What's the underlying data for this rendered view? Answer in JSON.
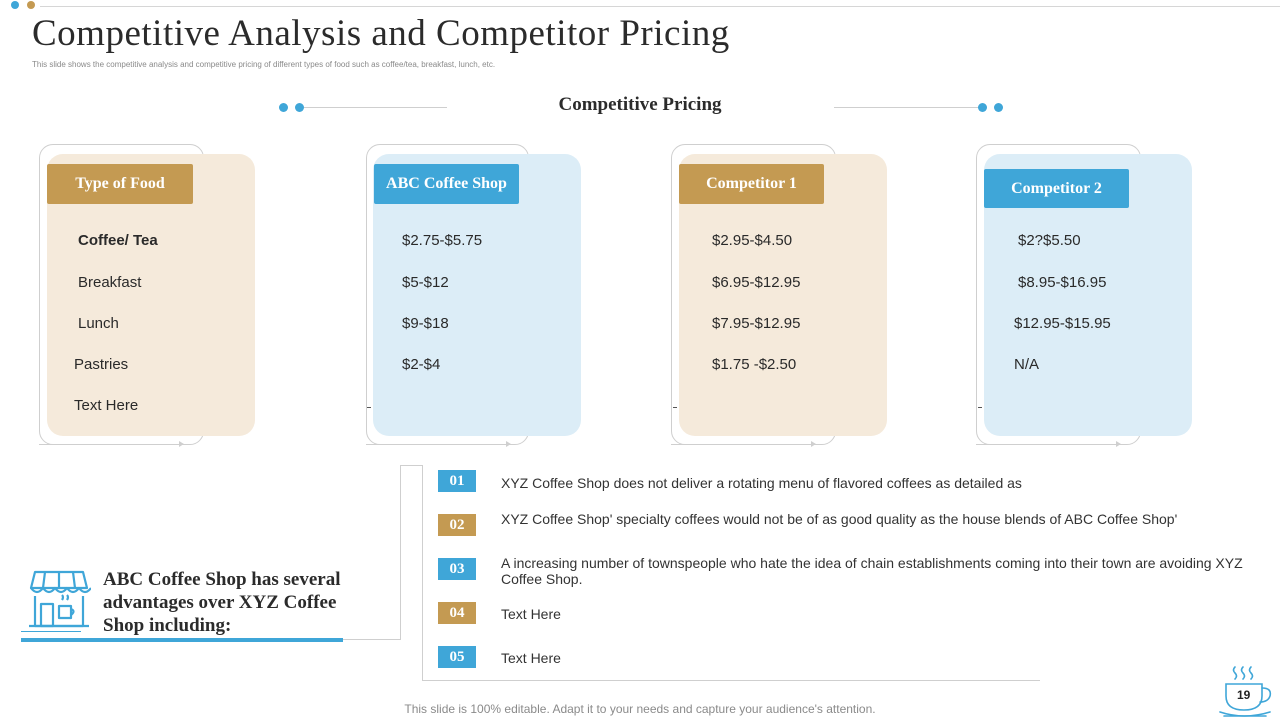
{
  "slide": {
    "title": "Competitive Analysis and Competitor Pricing",
    "subtitle": "This slide shows the competitive analysis and competitive pricing of different types of food such as coffee/tea, breakfast, lunch, etc.",
    "section_heading": "Competitive Pricing",
    "footer": "This slide is 100% editable. Adapt it to your needs and capture your audience's attention.",
    "page_number": "19"
  },
  "colors": {
    "gold": "#c49a52",
    "blue": "#3fa6d8",
    "beige_panel": "#f5eadb",
    "blue_panel": "#dcedf7"
  },
  "columns": [
    {
      "header": "Type of Food",
      "rows": [
        "Coffee/ Tea",
        "Breakfast",
        "Lunch",
        "Pastries",
        "Text Here"
      ]
    },
    {
      "header": "ABC Coffee Shop",
      "rows": [
        "$2.75-$5.75",
        "$5-$12",
        "$9-$18",
        "$2-$4"
      ]
    },
    {
      "header": "Competitor 1",
      "rows": [
        "$2.95-$4.50",
        "$6.95-$12.95",
        "$7.95-$12.95",
        "$1.75 -$2.50"
      ]
    },
    {
      "header": "Competitor 2",
      "rows": [
        "$2?$5.50",
        "$8.95-$16.95",
        "$12.95-$15.95",
        "N/A"
      ]
    }
  ],
  "advantages": {
    "heading": "ABC Coffee Shop has several advantages over XYZ Coffee Shop including:",
    "icon": "shop-icon",
    "points": [
      {
        "num": "01",
        "text": "XYZ  Coffee Shop does not deliver a rotating menu of flavored coffees as detailed as"
      },
      {
        "num": "02",
        "text": "XYZ  Coffee Shop' specialty coffees would  not be of as good quality as the house blends of ABC Coffee Shop'"
      },
      {
        "num": "03",
        "text": "A increasing number of townspeople who hate the idea of chain establishments coming into their town are avoiding XYZ Coffee Shop."
      },
      {
        "num": "04",
        "text": "Text Here"
      },
      {
        "num": "05",
        "text": "Text Here"
      }
    ]
  }
}
